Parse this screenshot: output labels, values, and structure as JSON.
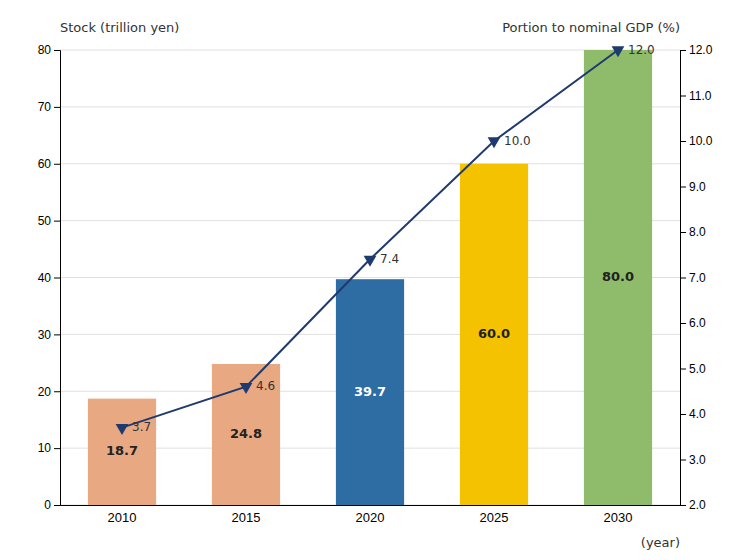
{
  "chart_data": {
    "type": "bar",
    "categories": [
      "2010",
      "2015",
      "2020",
      "2025",
      "2030"
    ],
    "xlabel": "(year)",
    "ylabel": "Stock (trillion yen)",
    "y2label": "Portion to nominal GDP (%)",
    "ylim": [
      0,
      80
    ],
    "yticks": [
      0,
      10,
      20,
      30,
      40,
      50,
      60,
      70,
      80
    ],
    "y2lim": [
      2.0,
      12.0
    ],
    "y2ticks": [
      {
        "value": 2.0,
        "label": "2.0"
      },
      {
        "value": 3.0,
        "label": "3.0"
      },
      {
        "value": 4.0,
        "label": "4.0"
      },
      {
        "value": 5.0,
        "label": "5.0"
      },
      {
        "value": 6.0,
        "label": "6.0"
      },
      {
        "value": 7.0,
        "label": "7.0"
      },
      {
        "value": 8.0,
        "label": "8.0"
      },
      {
        "value": 9.0,
        "label": "9.0"
      },
      {
        "value": 10.0,
        "label": "10.0"
      },
      {
        "value": 11.0,
        "label": "11.0"
      },
      {
        "value": 12.0,
        "label": "12.0"
      }
    ],
    "grid": true,
    "data_labels": true,
    "series": [
      {
        "type": "bar",
        "colors": [
          "#E8A882",
          "#E8A882",
          "#2E6CA4",
          "#F5C200",
          "#8FBC6A"
        ],
        "values": [
          18.7,
          24.8,
          39.7,
          60.0,
          80.0
        ],
        "value_labels": [
          "18.7",
          "24.8",
          "39.7",
          "60.0",
          "80.0"
        ]
      },
      {
        "type": "line",
        "axis": "y2",
        "color": "#1F3A6E",
        "marker": "triangle-down",
        "values": [
          3.7,
          4.6,
          7.4,
          10.0,
          12.0
        ],
        "value_labels": [
          "3.7",
          "4.6",
          "7.4",
          "10.0",
          "12.0"
        ]
      }
    ]
  }
}
